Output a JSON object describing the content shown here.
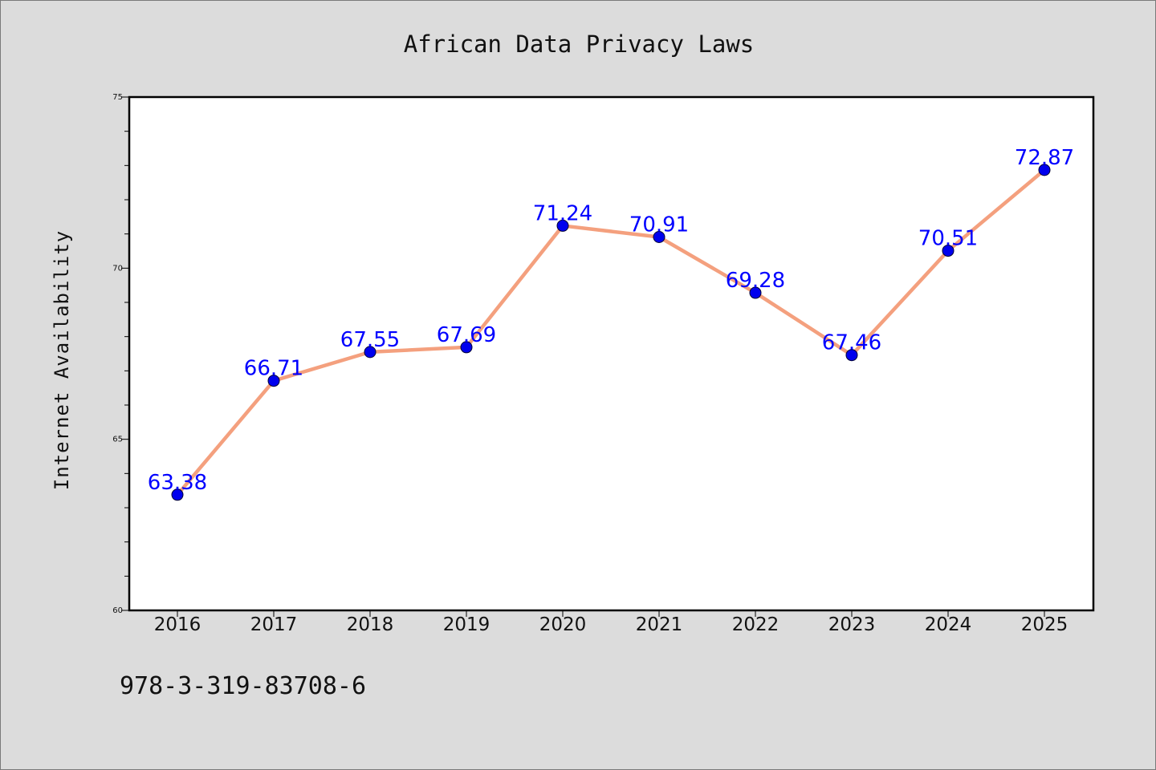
{
  "chart_data": {
    "type": "line",
    "title": "African Data Privacy Laws",
    "xlabel": "",
    "ylabel": "Internet Availability",
    "x": [
      "2016",
      "2017",
      "2018",
      "2019",
      "2020",
      "2021",
      "2022",
      "2023",
      "2024",
      "2025"
    ],
    "series": [
      {
        "values": [
          63.38,
          66.71,
          67.55,
          67.69,
          71.24,
          70.91,
          69.28,
          67.46,
          70.51,
          72.87
        ],
        "line_color": "#f4a07e",
        "marker_color": "#0000ee",
        "label_color": "#0000ff"
      }
    ],
    "data_labels": [
      "63.38",
      "66.71",
      "67.55",
      "67.69",
      "71.24",
      "70.91",
      "69.28",
      "67.46",
      "70.51",
      "72.87"
    ],
    "ylim": [
      60,
      75
    ],
    "yticks": [
      "60",
      "65",
      "70",
      "75"
    ],
    "grid": false,
    "legend": "none"
  },
  "footer": {
    "isbn": "978-3-319-83708-6"
  }
}
